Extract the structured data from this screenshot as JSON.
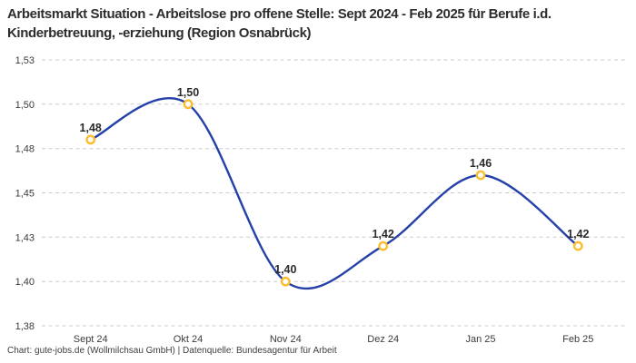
{
  "title": "Arbeitsmarkt Situation - Arbeitslose pro offene Stelle: Sept 2024 - Feb 2025 für Berufe i.d. Kinderbetreuung, -erziehung (Region Osnabrück)",
  "footer": "Chart: gute-jobs.de (Wollmilchsau GmbH) | Datenquelle: Bundesagentur für Arbeit",
  "colors": {
    "line": "#2540a8",
    "marker": "#fbbd2c",
    "marker_fill": "#ffffff",
    "grid": "#cbcbcb",
    "text_dark": "#2d2d2d",
    "tick_text": "#3b3b3b",
    "background": "#ffffff"
  },
  "chart_data": {
    "type": "line",
    "title": "Arbeitsmarkt Situation - Arbeitslose pro offene Stelle: Sept 2024 - Feb 2025 für Berufe i.d. Kinderbetreuung, -erziehung (Region Osnabrück)",
    "categories": [
      "Sept 24",
      "Okt 24",
      "Nov 24",
      "Dez 24",
      "Jan 25",
      "Feb 25"
    ],
    "values": [
      1.48,
      1.5,
      1.4,
      1.42,
      1.46,
      1.42
    ],
    "value_labels": [
      "1,48",
      "1,50",
      "1,40",
      "1,42",
      "1,46",
      "1,42"
    ],
    "y_ticks": [
      1.375,
      1.4,
      1.425,
      1.45,
      1.475,
      1.5,
      1.525
    ],
    "y_tick_labels": [
      "1,38",
      "1,40",
      "1,43",
      "1,45",
      "1,48",
      "1,50",
      "1,53"
    ],
    "ylim": [
      1.375,
      1.525
    ],
    "xlabel": "",
    "ylabel": "",
    "legend": "none",
    "grid": "horizontal-dashed",
    "line_color": "#2540a8",
    "marker_color": "#fbbd2c",
    "grid_color": "#cbcbcb"
  }
}
